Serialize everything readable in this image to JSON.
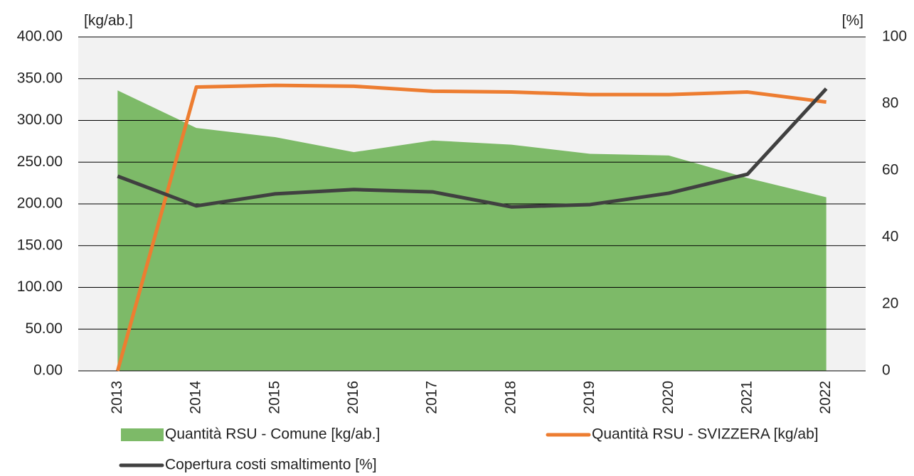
{
  "chart_data": {
    "type": "combo",
    "ylabel": "[kg/ab.]",
    "y2label": "[%]",
    "categories": [
      "2013",
      "2014",
      "2015",
      "2016",
      "2017",
      "2018",
      "2019",
      "2020",
      "2021",
      "2022"
    ],
    "series": [
      {
        "name": "Quantità RSU - Comune [kg/ab.]",
        "type": "area",
        "color": "#7dba68",
        "values": [
          336,
          291,
          280,
          262,
          276,
          271,
          260,
          258,
          231,
          208
        ]
      },
      {
        "name": "Quantità RSU - SVIZZERA [kg/ab]",
        "type": "line",
        "color": "#ed7d31",
        "values": [
          0,
          340,
          342,
          341,
          335,
          334,
          331,
          331,
          334,
          322
        ]
      },
      {
        "name": "Copertura costi smaltimento [%]",
        "type": "line",
        "color": "#404040",
        "axis": "y2",
        "values": [
          58.3,
          49.4,
          53,
          54.3,
          53.6,
          49.1,
          49.8,
          53.2,
          58.9,
          84.5
        ]
      }
    ],
    "ylim": [
      0,
      400
    ],
    "yticks": [
      {
        "value": 0,
        "label": "0.00"
      },
      {
        "value": 50,
        "label": "50.00"
      },
      {
        "value": 100,
        "label": "100.00"
      },
      {
        "value": 150,
        "label": "150.00"
      },
      {
        "value": 200,
        "label": "200.00"
      },
      {
        "value": 250,
        "label": "250.00"
      },
      {
        "value": 300,
        "label": "300.00"
      },
      {
        "value": 350,
        "label": "350.00"
      },
      {
        "value": 400,
        "label": "400.00"
      }
    ],
    "y2lim": [
      0,
      100
    ],
    "y2ticks": [
      0,
      20,
      40,
      60,
      80,
      100
    ],
    "grid": true
  }
}
